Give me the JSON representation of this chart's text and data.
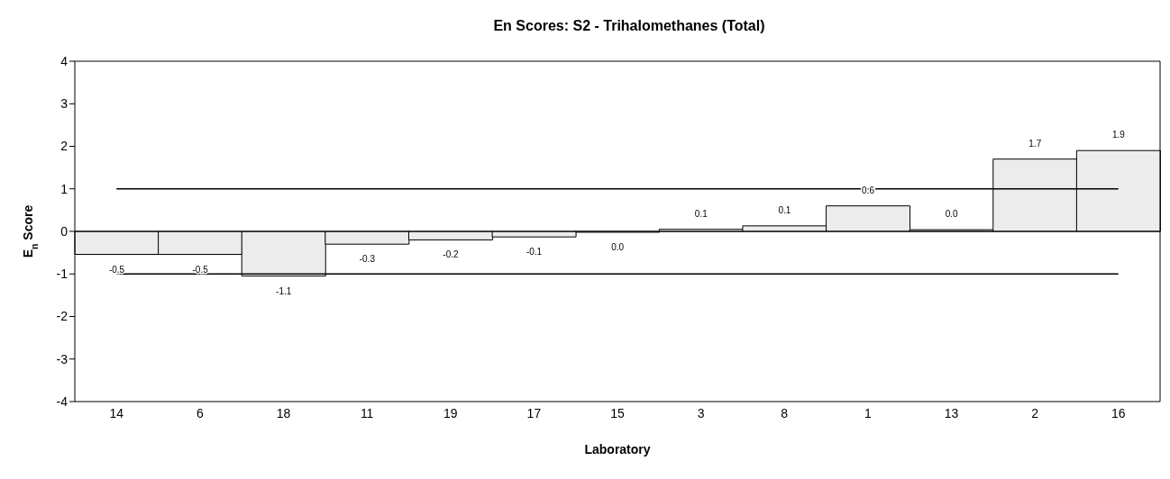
{
  "chart_data": {
    "type": "bar",
    "title": "En Scores: S2 - Trihalomethanes (Total)",
    "xlabel": "Laboratory",
    "ylabel": "E$_{n}$ Score",
    "categories": [
      "14",
      "6",
      "18",
      "11",
      "19",
      "17",
      "15",
      "3",
      "8",
      "1",
      "13",
      "2",
      "16"
    ],
    "values": [
      -0.54,
      -0.54,
      -1.05,
      -0.3,
      -0.2,
      -0.13,
      -0.02,
      0.05,
      0.13,
      0.6,
      0.04,
      1.7,
      1.9
    ],
    "value_labels": [
      "-0.5",
      "-0.5",
      "-1.1",
      "-0.3",
      "-0.2",
      "-0.1",
      "0.0",
      "0.1",
      "0.1",
      "0.6",
      "0.0",
      "1.7",
      "1.9"
    ],
    "color": "#ececec",
    "ylim": [
      -4,
      4
    ],
    "yticks": [
      -4,
      -3,
      -2,
      -1,
      0,
      1,
      2,
      3,
      4
    ],
    "grid": false,
    "legend": false,
    "ref_lines": [
      {
        "axis": "y",
        "value": 1,
        "color": "#000000"
      },
      {
        "axis": "y",
        "value": -1,
        "color": "#000000"
      }
    ]
  }
}
